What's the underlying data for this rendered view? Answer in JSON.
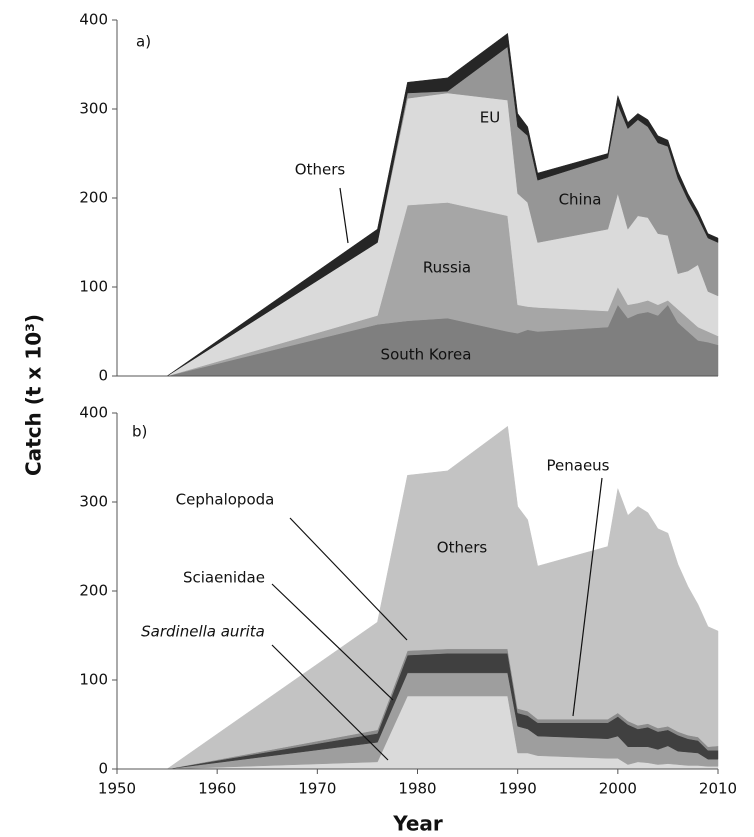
{
  "chart_data": [
    {
      "type": "stacked_area",
      "panel": "a)",
      "ylabel": "Catch (t x 10³)",
      "x": [
        1950,
        1955,
        1976,
        1979,
        1983,
        1989,
        1990,
        1991,
        1992,
        1999,
        2000,
        2001,
        2002,
        2003,
        2004,
        2005,
        2006,
        2007,
        2008,
        2009,
        2010
      ],
      "xlim": [
        1950,
        2010
      ],
      "ylim": [
        0,
        400
      ],
      "yticks": [
        0,
        100,
        200,
        300,
        400
      ],
      "series": [
        {
          "name": "South Korea",
          "color": "#7f7f7f",
          "values": [
            0,
            0,
            58,
            62,
            65,
            50,
            48,
            52,
            50,
            55,
            80,
            65,
            70,
            72,
            68,
            80,
            60,
            50,
            40,
            38,
            35
          ]
        },
        {
          "name": "Russia",
          "color": "#a6a6a6",
          "values": [
            0,
            0,
            10,
            130,
            130,
            130,
            32,
            26,
            27,
            18,
            20,
            15,
            12,
            13,
            12,
            5,
            15,
            15,
            15,
            12,
            10
          ]
        },
        {
          "name": "EU",
          "color": "#dadada",
          "values": [
            0,
            0,
            82,
            120,
            123,
            130,
            125,
            117,
            73,
            92,
            105,
            85,
            98,
            93,
            80,
            73,
            40,
            53,
            70,
            45,
            45
          ]
        },
        {
          "name": "China",
          "color": "#969696",
          "values": [
            0,
            0,
            0,
            6,
            2,
            60,
            75,
            75,
            70,
            80,
            100,
            113,
            108,
            102,
            102,
            100,
            107,
            80,
            53,
            60,
            60
          ]
        },
        {
          "name": "Others",
          "color": "#262626",
          "values": [
            0,
            0,
            15,
            12,
            15,
            15,
            15,
            10,
            8,
            5,
            10,
            7,
            7,
            8,
            8,
            7,
            8,
            7,
            7,
            5,
            5
          ]
        }
      ]
    },
    {
      "type": "stacked_area",
      "panel": "b)",
      "xlabel": "Year",
      "x": [
        1950,
        1955,
        1976,
        1979,
        1983,
        1989,
        1990,
        1991,
        1992,
        1999,
        2000,
        2001,
        2002,
        2003,
        2004,
        2005,
        2006,
        2007,
        2008,
        2009,
        2010
      ],
      "xlim": [
        1950,
        2010
      ],
      "xticks": [
        1950,
        1960,
        1970,
        1980,
        1990,
        2000,
        2010
      ],
      "ylim": [
        0,
        400
      ],
      "yticks": [
        0,
        100,
        200,
        300,
        400
      ],
      "series": [
        {
          "name": "Sardinella aurita",
          "color": "#dadada",
          "values": [
            0,
            0,
            8,
            82,
            82,
            82,
            18,
            18,
            15,
            12,
            12,
            5,
            8,
            7,
            5,
            6,
            5,
            4,
            4,
            3,
            3
          ]
        },
        {
          "name": "Sciaenidae",
          "color": "#9e9e9e",
          "values": [
            0,
            0,
            22,
            26,
            26,
            26,
            30,
            27,
            22,
            22,
            25,
            20,
            17,
            18,
            17,
            20,
            15,
            15,
            14,
            8,
            8
          ]
        },
        {
          "name": "Cephalopoda",
          "color": "#404040",
          "values": [
            0,
            0,
            10,
            20,
            22,
            22,
            15,
            15,
            15,
            18,
            22,
            25,
            20,
            22,
            20,
            18,
            18,
            15,
            14,
            10,
            10
          ]
        },
        {
          "name": "Penaeus",
          "color": "#8c8c8c",
          "values": [
            0,
            0,
            4,
            5,
            5,
            5,
            5,
            5,
            4,
            4,
            4,
            4,
            4,
            4,
            4,
            4,
            4,
            4,
            4,
            4,
            5
          ]
        },
        {
          "name": "Others",
          "color": "#c3c3c3",
          "values": [
            0,
            0,
            121,
            197,
            200,
            250,
            227,
            215,
            172,
            194,
            252,
            231,
            246,
            237,
            224,
            217,
            188,
            167,
            149,
            135,
            129
          ]
        }
      ]
    }
  ]
}
